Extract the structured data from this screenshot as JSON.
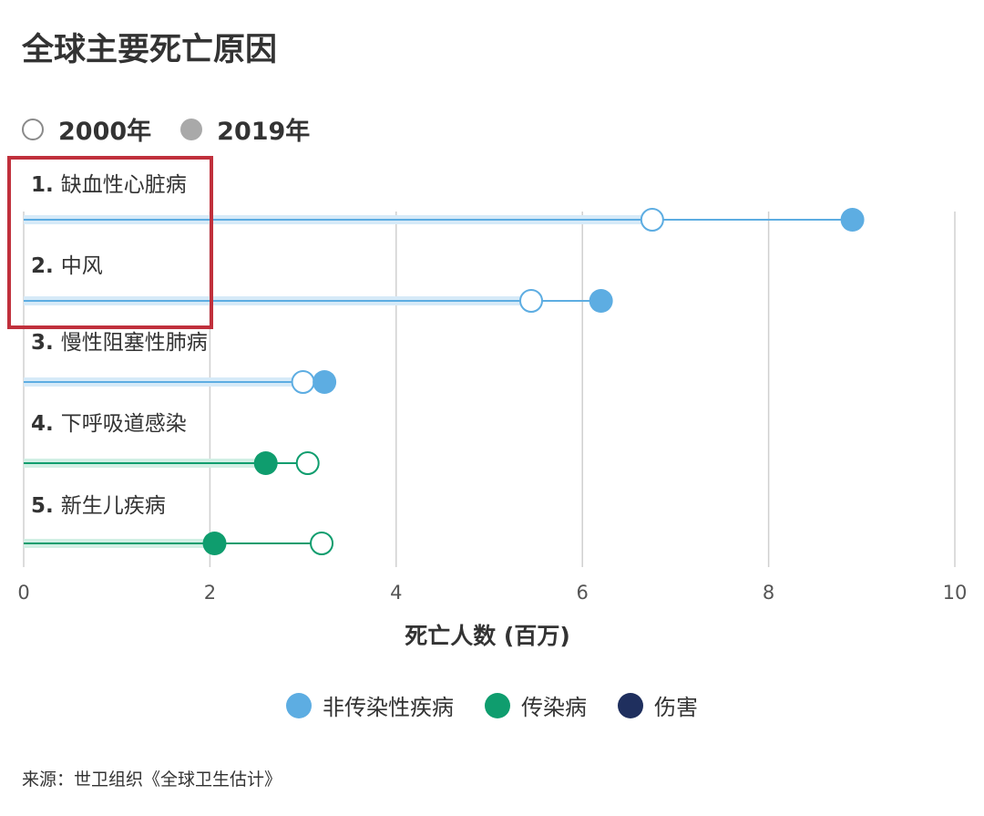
{
  "title": "全球主要死亡原因",
  "year_legend": [
    {
      "label": "2000年",
      "style": "open"
    },
    {
      "label": "2019年",
      "style": "filled"
    }
  ],
  "category_legend": [
    {
      "label": "非传染性疾病",
      "color": "#5dade2"
    },
    {
      "label": "传染病",
      "color": "#0f9d6e"
    },
    {
      "label": "伤害",
      "color": "#1f2f5e"
    }
  ],
  "source": "来源：世卫组织《全球卫生估计》",
  "chart_data": {
    "type": "dumbbell",
    "xlabel": "死亡人数 (百万)",
    "xlim": [
      0,
      10
    ],
    "xticks": [
      "0",
      "2",
      "4",
      "6",
      "8",
      "10"
    ],
    "series_names": [
      "2000年",
      "2019年"
    ],
    "rows": [
      {
        "label": "1. 缺血性心脏病",
        "category": "非传染性疾病",
        "v2000": 6.75,
        "v2019": 8.9
      },
      {
        "label": "2. 中风",
        "category": "非传染性疾病",
        "v2000": 5.45,
        "v2019": 6.2
      },
      {
        "label": "3. 慢性阻塞性肺病",
        "category": "非传染性疾病",
        "v2000": 3.0,
        "v2019": 3.23
      },
      {
        "label": "4. 下呼吸道感染",
        "category": "传染病",
        "v2000": 3.05,
        "v2019": 2.6
      },
      {
        "label": "5. 新生儿疾病",
        "category": "传染病",
        "v2000": 3.2,
        "v2019": 2.05
      }
    ],
    "grid": true
  }
}
